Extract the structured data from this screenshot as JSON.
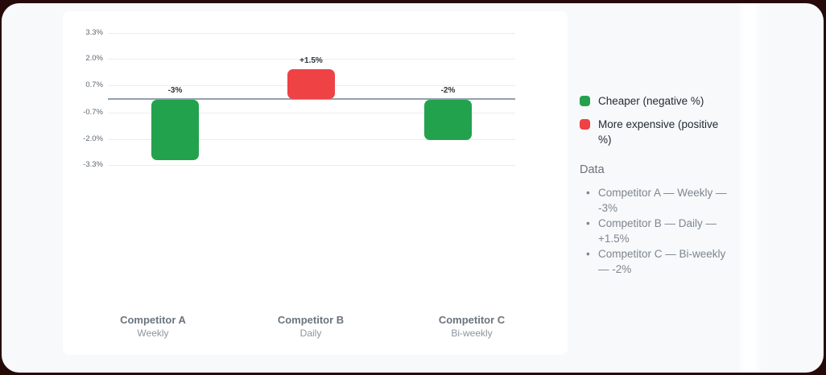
{
  "chart_data": {
    "type": "bar",
    "title": "",
    "xlabel": "",
    "ylabel": "",
    "categories": [
      "Competitor A",
      "Competitor B",
      "Competitor C"
    ],
    "category_sublabels": [
      "Weekly",
      "Daily",
      "Bi-weekly"
    ],
    "values": [
      -3,
      1.5,
      -2
    ],
    "bar_labels": [
      "-3%",
      "+1.5%",
      "-2%"
    ],
    "ytick_values": [
      3.3,
      2.0,
      0.7,
      -0.7,
      -2.0,
      -3.3
    ],
    "ytick_labels": [
      "3.3%",
      "2.0%",
      "0.7%",
      "-0.7%",
      "-2.0%",
      "-3.3%"
    ],
    "ylim": [
      -3.65,
      3.65
    ],
    "grid": true,
    "legend_position": "right",
    "colors": {
      "negative": "#22a24d",
      "positive": "#ee4245",
      "zero_line": "#91a0b1"
    }
  },
  "legend": {
    "items": [
      {
        "icon": "green-square-swatch",
        "color": "#22a24d",
        "label": "Cheaper (negative %)"
      },
      {
        "icon": "red-square-swatch",
        "color": "#ee4245",
        "label": "More expensive (positive %)"
      }
    ],
    "data_heading": "Data",
    "data_items": [
      "Competitor A — Weekly — -3%",
      "Competitor B — Daily — +1.5%",
      "Competitor C — Bi-weekly — -2%"
    ]
  }
}
